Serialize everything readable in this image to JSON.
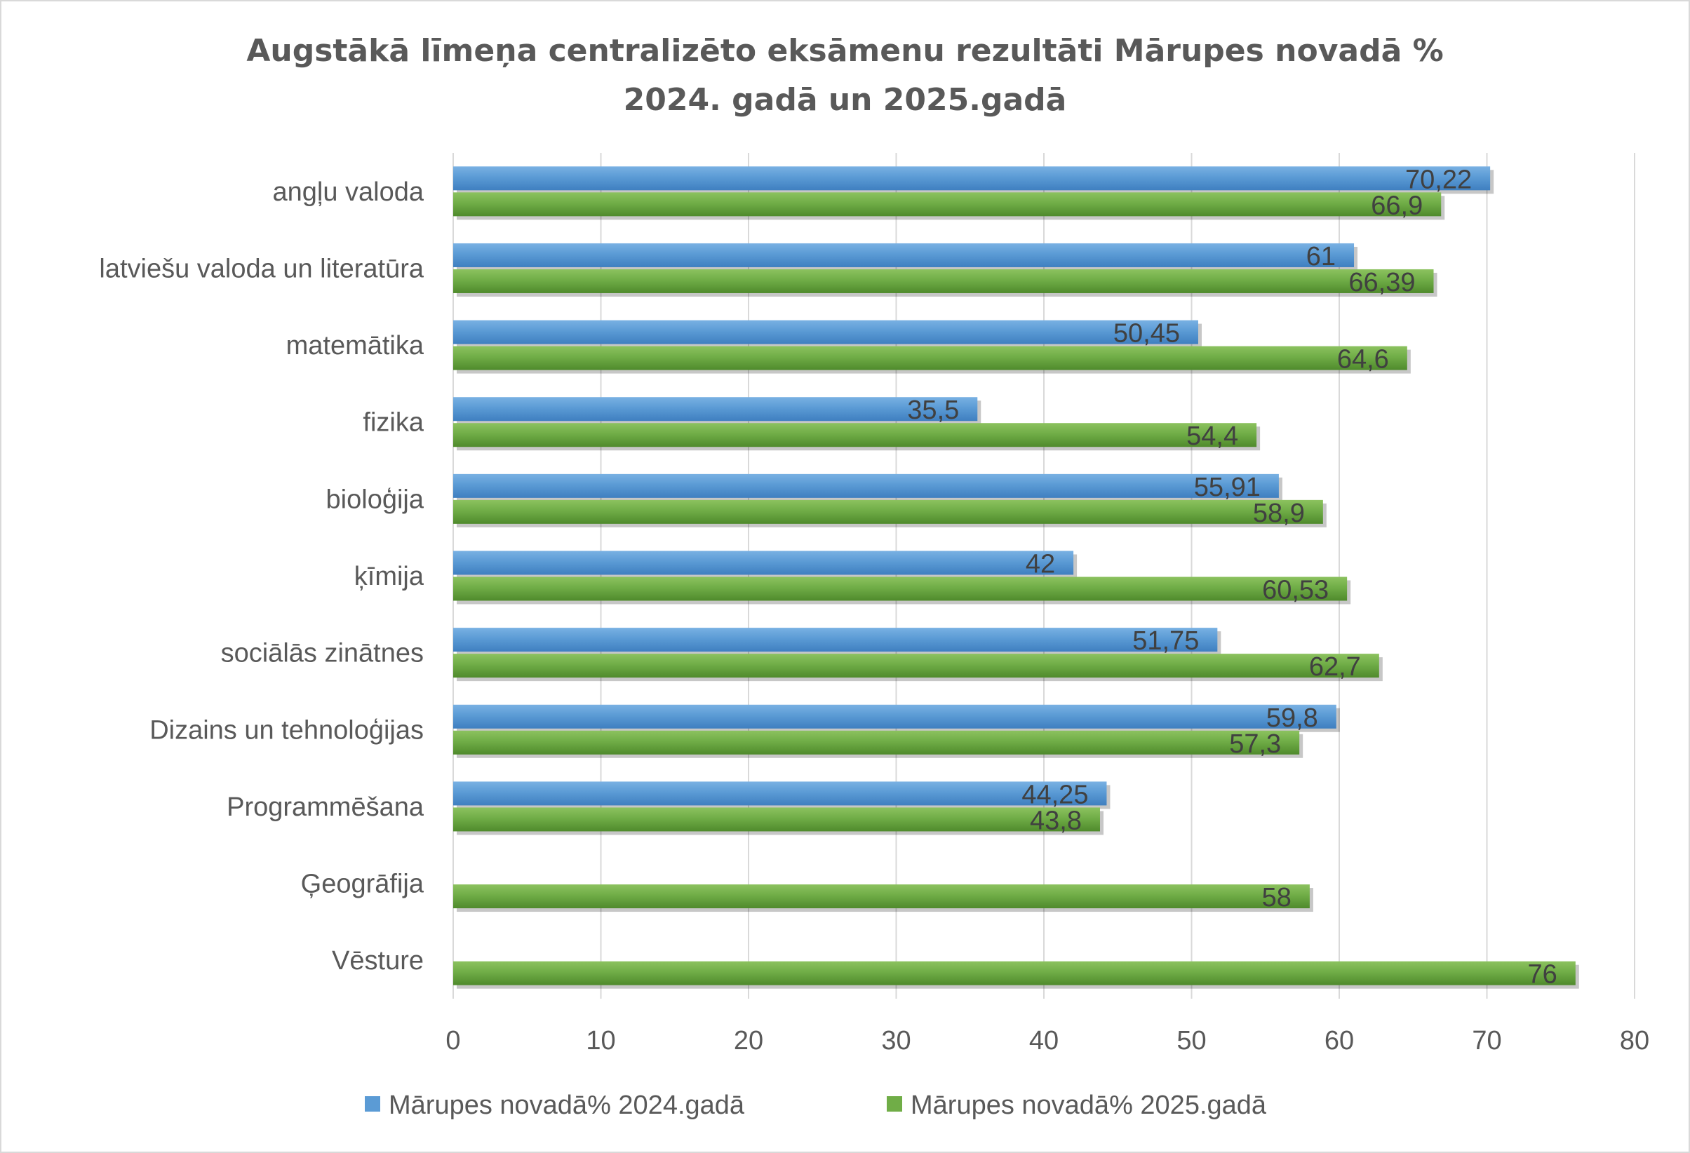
{
  "chart_data": {
    "type": "bar",
    "orientation": "horizontal",
    "title_lines": [
      "Augstākā līmeņa centralizēto eksāmenu rezultāti Mārupes novadā %",
      "2024. gadā un 2025.gadā"
    ],
    "categories": [
      "angļu valoda",
      "latviešu valoda un literatūra",
      "matemātika",
      "fizika",
      "bioloģija",
      "ķīmija",
      "sociālās zinātnes",
      "Dizains un tehnoloģijas",
      "Programmēšana",
      "Ģeogrāfija",
      "Vēsture"
    ],
    "series": [
      {
        "name": "Mārupes novadā% 2024.gadā",
        "color": "#5b9bd5",
        "values": [
          70.22,
          61,
          50.45,
          35.5,
          55.91,
          42,
          51.75,
          59.8,
          44.25,
          null,
          null
        ],
        "labels": [
          "70,22",
          "61",
          "50,45",
          "35,5",
          "55,91",
          "42",
          "51,75",
          "59,8",
          "44,25",
          null,
          null
        ]
      },
      {
        "name": "Mārupes novadā% 2025.gadā",
        "color": "#70ad47",
        "values": [
          66.9,
          66.39,
          64.6,
          54.4,
          58.9,
          60.53,
          62.7,
          57.3,
          43.8,
          58,
          76
        ],
        "labels": [
          "66,9",
          "66,39",
          "64,6",
          "54,4",
          "58,9",
          "60,53",
          "62,7",
          "57,3",
          "43,8",
          "58",
          "76"
        ]
      }
    ],
    "xlim": [
      0,
      80
    ],
    "xticks": [
      "0",
      "10",
      "20",
      "30",
      "40",
      "50",
      "60",
      "70",
      "80"
    ],
    "grid": true,
    "legend_position": "bottom"
  }
}
